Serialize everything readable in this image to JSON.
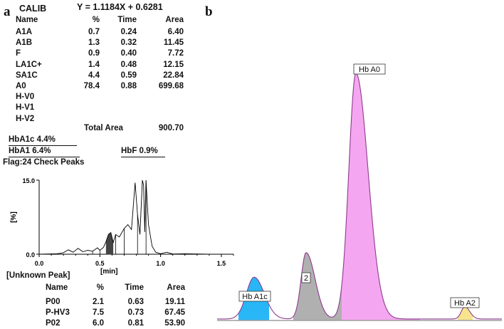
{
  "panel_a": {
    "letter": "a",
    "calib_label": "CALIB",
    "equation": "Y = 1.1184X + 0.6281",
    "headers": {
      "name": "Name",
      "pct": "%",
      "time": "Time",
      "area": "Area"
    },
    "rows": [
      {
        "name": "A1A",
        "pct": "0.7",
        "time": "0.24",
        "area": "6.40"
      },
      {
        "name": "A1B",
        "pct": "1.3",
        "time": "0.32",
        "area": "11.45"
      },
      {
        "name": "F",
        "pct": "0.9",
        "time": "0.40",
        "area": "7.72"
      },
      {
        "name": "LA1C+",
        "pct": "1.4",
        "time": "0.48",
        "area": "12.15"
      },
      {
        "name": "SA1C",
        "pct": "4.4",
        "time": "0.59",
        "area": "22.84"
      },
      {
        "name": "A0",
        "pct": "78.4",
        "time": "0.88",
        "area": "699.68"
      },
      {
        "name": "H-V0",
        "pct": "",
        "time": "",
        "area": ""
      },
      {
        "name": "H-V1",
        "pct": "",
        "time": "",
        "area": ""
      },
      {
        "name": "H-V2",
        "pct": "",
        "time": "",
        "area": ""
      }
    ],
    "total_area_label": "Total Area",
    "total_area_value": "900.70",
    "hba1c": "HbA1c  4.4%",
    "hba1": "HbA1  6.4%",
    "hbf": "HbF  0.9%",
    "flag": "Flag:24  Check Peaks",
    "unknown_label": "[Unknown  Peak]",
    "unknown_headers": {
      "name": "Name",
      "pct": "%",
      "time": "Time",
      "area": "Area"
    },
    "unknown_rows": [
      {
        "name": "P00",
        "pct": "2.1",
        "time": "0.63",
        "area": "19.11"
      },
      {
        "name": "P-HV3",
        "pct": "7.5",
        "time": "0.73",
        "area": "67.45"
      },
      {
        "name": "P02",
        "pct": "6.0",
        "time": "0.81",
        "area": "53.90"
      }
    ]
  },
  "panel_b": {
    "letter": "b"
  },
  "chart_data": [
    {
      "type": "line",
      "xlabel": "[min]",
      "ylabel": "[%]",
      "xlim": [
        0.0,
        1.6
      ],
      "ylim": [
        0.0,
        15.0
      ],
      "xticks": [
        "0.0",
        "0.5",
        "1.0",
        "1.5"
      ],
      "yticks": [
        "0.0",
        "15.0"
      ],
      "x": [
        0.0,
        0.15,
        0.2,
        0.24,
        0.28,
        0.32,
        0.36,
        0.4,
        0.44,
        0.48,
        0.5,
        0.53,
        0.55,
        0.57,
        0.59,
        0.61,
        0.63,
        0.66,
        0.7,
        0.73,
        0.76,
        0.79,
        0.81,
        0.83,
        0.85,
        0.86,
        0.87,
        0.88,
        0.9,
        0.93,
        0.96,
        1.0,
        1.05,
        1.1,
        1.2,
        1.4,
        1.6
      ],
      "y": [
        0.0,
        0.1,
        0.3,
        0.9,
        0.4,
        1.2,
        0.5,
        0.8,
        0.6,
        1.3,
        0.8,
        1.4,
        2.5,
        4.0,
        4.4,
        2.4,
        4.0,
        3.5,
        5.2,
        6.0,
        5.0,
        14.5,
        8.0,
        4.0,
        15.0,
        14.0,
        4.5,
        15.0,
        6.0,
        1.6,
        0.4,
        0.1,
        0.4,
        0.05,
        0.1,
        0.0,
        0.0
      ],
      "color": "#000000",
      "highlight_color": "#444444"
    },
    {
      "type": "area",
      "series": [
        {
          "name": "Hb A1c",
          "peak_height": 0.17,
          "color": "#29b6f6"
        },
        {
          "name": "2",
          "peak_height": 0.27,
          "color": "#b0b0b0"
        },
        {
          "name": "Hb A0",
          "peak_height": 1.0,
          "color": "#f4a7f0"
        },
        {
          "name": "Hb A2",
          "peak_height": 0.05,
          "color": "#f6e58d"
        }
      ],
      "line_color": "#8e3a8e",
      "baseline_color": "#9e9e9e"
    }
  ]
}
